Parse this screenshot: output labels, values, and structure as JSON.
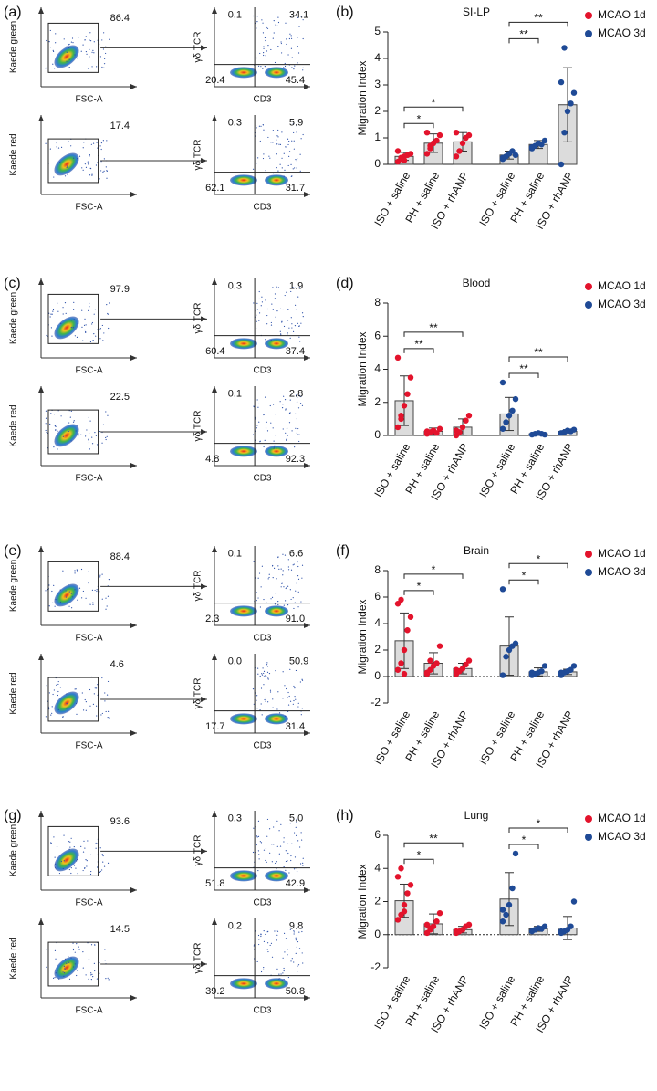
{
  "flow_panels": [
    {
      "label": "(a)",
      "rows": [
        {
          "gate_y_label": "Kaede green",
          "gate_x_label": "FSC-A",
          "gate": "86.4",
          "quad_y_label": "γδ TCR",
          "quad_x_label": "CD3",
          "quadrants": [
            "0.1",
            "34.1",
            "20.4",
            "45.4"
          ]
        },
        {
          "gate_y_label": "Kaede red",
          "gate_x_label": "FSC-A",
          "gate": "17.4",
          "quad_y_label": "γδ TCR",
          "quad_x_label": "CD3",
          "quadrants": [
            "0.3",
            "5.9",
            "62.1",
            "31.7"
          ]
        }
      ]
    },
    {
      "label": "(c)",
      "rows": [
        {
          "gate_y_label": "Kaede green",
          "gate_x_label": "FSC-A",
          "gate": "97.9",
          "quad_y_label": "γδ TCR",
          "quad_x_label": "CD3",
          "quadrants": [
            "0.3",
            "1.9",
            "60.4",
            "37.4"
          ]
        },
        {
          "gate_y_label": "Kaede red",
          "gate_x_label": "FSC-A",
          "gate": "22.5",
          "quad_y_label": "γδ TCR",
          "quad_x_label": "CD3",
          "quadrants": [
            "0.1",
            "2.8",
            "4.8",
            "92.3"
          ]
        }
      ]
    },
    {
      "label": "(e)",
      "rows": [
        {
          "gate_y_label": "Kaede green",
          "gate_x_label": "FSC-A",
          "gate": "88.4",
          "quad_y_label": "γδ TCR",
          "quad_x_label": "CD3",
          "quadrants": [
            "0.1",
            "6.6",
            "2.3",
            "91.0"
          ]
        },
        {
          "gate_y_label": "Kaede red",
          "gate_x_label": "FSC-A",
          "gate": "4.6",
          "quad_y_label": "γδ TCR",
          "quad_x_label": "CD3",
          "quadrants": [
            "0.0",
            "50.9",
            "17.7",
            "31.4"
          ]
        }
      ]
    },
    {
      "label": "(g)",
      "rows": [
        {
          "gate_y_label": "Kaede green",
          "gate_x_label": "FSC-A",
          "gate": "93.6",
          "quad_y_label": "γδ TCR",
          "quad_x_label": "CD3",
          "quadrants": [
            "0.3",
            "5.0",
            "51.8",
            "42.9"
          ]
        },
        {
          "gate_y_label": "Kaede red",
          "gate_x_label": "FSC-A",
          "gate": "14.5",
          "quad_y_label": "γδ TCR",
          "quad_x_label": "CD3",
          "quadrants": [
            "0.2",
            "9.8",
            "39.2",
            "50.8"
          ]
        }
      ]
    }
  ],
  "chart_data": [
    {
      "type": "bar",
      "label": "(b)",
      "title": "SI-LP",
      "ylabel": "Migration Index",
      "categories": [
        "ISO + saline",
        "PH + saline",
        "ISO + rhANP"
      ],
      "ylim": [
        0,
        5
      ],
      "yticks": [
        0,
        1,
        2,
        3,
        4,
        5
      ],
      "zero_line": false,
      "series": [
        {
          "name": "MCAO 1d",
          "color": "#e3132c",
          "values": [
            0.3,
            0.8,
            0.85
          ],
          "errors": [
            0.15,
            0.35,
            0.35
          ],
          "points": [
            [
              0.1,
              0.2,
              0.3,
              0.35,
              0.4,
              0.5,
              0.25,
              0.15
            ],
            [
              0.4,
              0.6,
              0.8,
              0.9,
              1.1,
              1.2,
              0.7
            ],
            [
              0.3,
              0.5,
              0.8,
              1.0,
              1.1,
              1.2
            ]
          ]
        },
        {
          "name": "MCAO 3d",
          "color": "#1f4a96",
          "values": [
            0.35,
            0.75,
            2.25
          ],
          "errors": [
            0.15,
            0.15,
            1.4
          ],
          "points": [
            [
              0.2,
              0.3,
              0.4,
              0.5,
              0.35,
              0.25
            ],
            [
              0.6,
              0.7,
              0.8,
              0.75,
              0.9,
              0.65
            ],
            [
              0,
              1.2,
              2.0,
              2.3,
              2.7,
              3.1,
              4.4
            ]
          ]
        }
      ],
      "significance": [
        {
          "series": 0,
          "from": 0,
          "to": 1,
          "label": "*"
        },
        {
          "series": 0,
          "from": 0,
          "to": 2,
          "label": "*"
        },
        {
          "series": 1,
          "from": 0,
          "to": 1,
          "label": "**"
        },
        {
          "series": 1,
          "from": 0,
          "to": 2,
          "label": "**"
        }
      ]
    },
    {
      "type": "bar",
      "label": "(d)",
      "title": "Blood",
      "ylabel": "Migration Index",
      "categories": [
        "ISO + saline",
        "PH + saline",
        "ISO + rhANP"
      ],
      "ylim": [
        0,
        8
      ],
      "yticks": [
        0,
        2,
        4,
        6,
        8
      ],
      "zero_line": false,
      "series": [
        {
          "name": "MCAO 1d",
          "color": "#e3132c",
          "values": [
            2.1,
            0.25,
            0.5
          ],
          "errors": [
            1.5,
            0.2,
            0.5
          ],
          "points": [
            [
              0.5,
              1.0,
              1.8,
              2.5,
              3.5,
              4.7,
              1.2
            ],
            [
              0.1,
              0.2,
              0.3,
              0.15,
              0.4,
              0.25
            ],
            [
              0,
              0.2,
              0.5,
              0.9,
              1.2,
              0.3
            ]
          ]
        },
        {
          "name": "MCAO 3d",
          "color": "#1f4a96",
          "values": [
            1.3,
            0.1,
            0.25
          ],
          "errors": [
            1.0,
            0.05,
            0.1
          ],
          "points": [
            [
              0.4,
              0.8,
              1.2,
              1.5,
              2.2,
              3.2
            ],
            [
              0.05,
              0.1,
              0.15,
              0.1,
              0.05
            ],
            [
              0.15,
              0.2,
              0.3,
              0.25,
              0.35
            ]
          ]
        }
      ],
      "significance": [
        {
          "series": 0,
          "from": 0,
          "to": 1,
          "label": "**"
        },
        {
          "series": 0,
          "from": 0,
          "to": 2,
          "label": "**"
        },
        {
          "series": 1,
          "from": 0,
          "to": 1,
          "label": "**"
        },
        {
          "series": 1,
          "from": 0,
          "to": 2,
          "label": "**"
        }
      ]
    },
    {
      "type": "bar",
      "label": "(f)",
      "title": "Brain",
      "ylabel": "Migration Index",
      "categories": [
        "ISO + saline",
        "PH + saline",
        "ISO + rhANP"
      ],
      "ylim": [
        -2,
        8
      ],
      "yticks": [
        -2,
        0,
        2,
        4,
        6,
        8
      ],
      "zero_line": true,
      "series": [
        {
          "name": "MCAO 1d",
          "color": "#e3132c",
          "values": [
            2.7,
            1.0,
            0.6
          ],
          "errors": [
            2.1,
            0.8,
            0.4
          ],
          "points": [
            [
              0.5,
              1.0,
              2.0,
              3.5,
              4.5,
              5.5,
              5.8,
              0.2
            ],
            [
              0.2,
              0.5,
              0.8,
              1.0,
              2.3,
              0.3,
              1.2
            ],
            [
              0.2,
              0.4,
              0.6,
              0.9,
              1.2,
              0.5
            ]
          ]
        },
        {
          "name": "MCAO 3d",
          "color": "#1f4a96",
          "values": [
            2.3,
            0.35,
            0.35
          ],
          "errors": [
            2.2,
            0.3,
            0.2
          ],
          "points": [
            [
              0.1,
              1.5,
              2.0,
              2.3,
              2.5,
              6.6
            ],
            [
              0.1,
              0.2,
              0.3,
              0.4,
              0.8,
              0.3
            ],
            [
              0.1,
              0.3,
              0.4,
              0.5,
              0.8,
              0.3
            ]
          ]
        }
      ],
      "significance": [
        {
          "series": 0,
          "from": 0,
          "to": 1,
          "label": "*"
        },
        {
          "series": 0,
          "from": 0,
          "to": 2,
          "label": "*"
        },
        {
          "series": 1,
          "from": 0,
          "to": 1,
          "label": "*"
        },
        {
          "series": 1,
          "from": 0,
          "to": 2,
          "label": "*"
        }
      ]
    },
    {
      "type": "bar",
      "label": "(h)",
      "title": "Lung",
      "ylabel": "Migration Index",
      "categories": [
        "ISO + saline",
        "PH + saline",
        "ISO + rhANP"
      ],
      "ylim": [
        -2,
        6
      ],
      "yticks": [
        -2,
        0,
        2,
        4,
        6
      ],
      "zero_line": true,
      "series": [
        {
          "name": "MCAO 1d",
          "color": "#e3132c",
          "values": [
            2.05,
            0.65,
            0.3
          ],
          "errors": [
            1.0,
            0.6,
            0.2
          ],
          "points": [
            [
              0.9,
              1.2,
              1.8,
              2.5,
              3.0,
              3.5,
              4.0,
              1.4
            ],
            [
              0.1,
              0.3,
              0.5,
              0.8,
              1.3,
              0.6,
              0.4
            ],
            [
              0.1,
              0.2,
              0.3,
              0.5,
              0.6,
              0.2
            ]
          ]
        },
        {
          "name": "MCAO 3d",
          "color": "#1f4a96",
          "values": [
            2.15,
            0.35,
            0.4
          ],
          "errors": [
            1.6,
            0.15,
            0.7
          ],
          "points": [
            [
              0.8,
              1.2,
              1.8,
              2.8,
              4.9,
              1.5
            ],
            [
              0.2,
              0.3,
              0.4,
              0.35,
              0.5
            ],
            [
              0.1,
              0.2,
              0.3,
              0.5,
              2.0,
              0.2
            ]
          ]
        }
      ],
      "significance": [
        {
          "series": 0,
          "from": 0,
          "to": 1,
          "label": "*"
        },
        {
          "series": 0,
          "from": 0,
          "to": 2,
          "label": "**"
        },
        {
          "series": 1,
          "from": 0,
          "to": 1,
          "label": "*"
        },
        {
          "series": 1,
          "from": 0,
          "to": 2,
          "label": "*"
        }
      ]
    }
  ]
}
